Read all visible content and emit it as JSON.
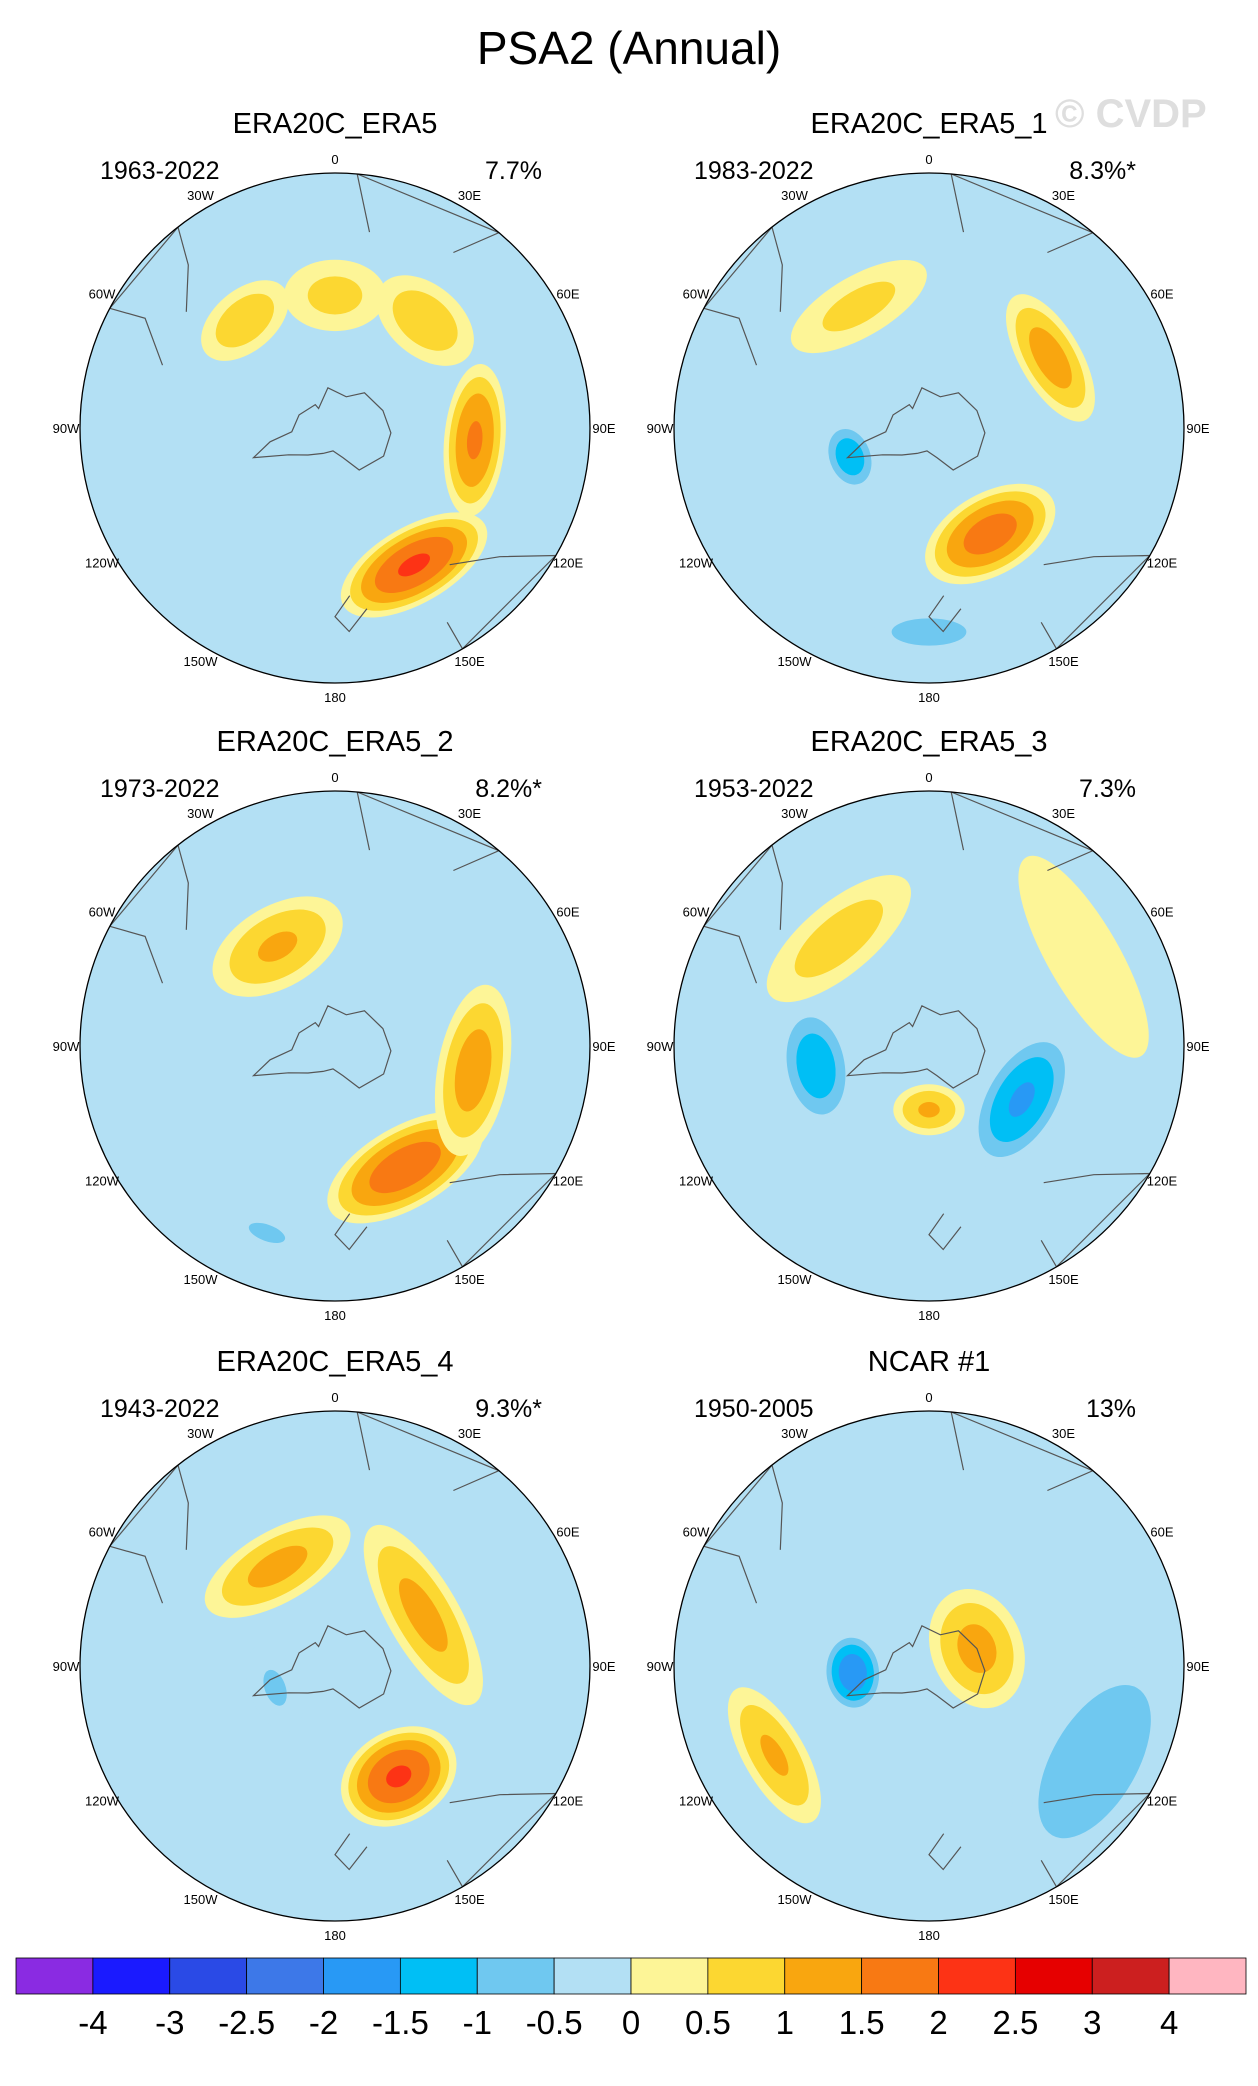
{
  "figure": {
    "title": "PSA2 (Annual)",
    "watermark": "© CVDP"
  },
  "chart_data": {
    "type": "heatmap",
    "projection": "south-polar-stereographic",
    "variable_units": "",
    "longitude_labels": [
      "0",
      "30E",
      "60E",
      "90E",
      "120E",
      "150E",
      "180",
      "150W",
      "120W",
      "90W",
      "60W",
      "30W"
    ],
    "panels": [
      {
        "name": "ERA20C_ERA5",
        "period": "1963-2022",
        "pct_variance": "7.7%",
        "anomalies": [
          {
            "lon": 150,
            "dist": 0.62,
            "a": 0.15,
            "b": 0.32,
            "rot": 0,
            "value": 2.1
          },
          {
            "lon": 95,
            "dist": 0.55,
            "a": 0.12,
            "b": 0.3,
            "rot": 0,
            "value": 1.6
          },
          {
            "lon": 40,
            "dist": 0.55,
            "a": 0.14,
            "b": 0.22,
            "rot": 0,
            "value": 0.9
          },
          {
            "lon": 0,
            "dist": 0.52,
            "a": 0.14,
            "b": 0.2,
            "rot": 0,
            "value": 0.7
          },
          {
            "lon": 320,
            "dist": 0.55,
            "a": 0.12,
            "b": 0.2,
            "rot": 0,
            "value": 0.9
          },
          {
            "lon": 210,
            "dist": 0.15,
            "a": 0.15,
            "b": 0.18,
            "rot": 0,
            "value": -0.4
          }
        ]
      },
      {
        "name": "ERA20C_ERA5_1",
        "period": "1983-2022",
        "pct_variance": "8.3%*",
        "anomalies": [
          {
            "lon": 150,
            "dist": 0.48,
            "a": 0.16,
            "b": 0.28,
            "rot": 0,
            "value": 1.8
          },
          {
            "lon": 60,
            "dist": 0.55,
            "a": 0.12,
            "b": 0.28,
            "rot": 0,
            "value": 1.3
          },
          {
            "lon": 330,
            "dist": 0.55,
            "a": 0.12,
            "b": 0.3,
            "rot": 0,
            "value": 0.7
          },
          {
            "lon": 250,
            "dist": 0.33,
            "a": 0.1,
            "b": 0.14,
            "rot": 0,
            "value": -1.4
          },
          {
            "lon": 180,
            "dist": 0.8,
            "a": 0.08,
            "b": 0.22,
            "rot": 0,
            "value": -0.9
          }
        ]
      },
      {
        "name": "ERA20C_ERA5_2",
        "period": "1973-2022",
        "pct_variance": "8.2%*",
        "anomalies": [
          {
            "lon": 150,
            "dist": 0.55,
            "a": 0.16,
            "b": 0.34,
            "rot": 0,
            "value": 1.9
          },
          {
            "lon": 100,
            "dist": 0.55,
            "a": 0.14,
            "b": 0.34,
            "rot": 0,
            "value": 1.3
          },
          {
            "lon": 330,
            "dist": 0.45,
            "a": 0.16,
            "b": 0.28,
            "rot": 0,
            "value": 1.1
          },
          {
            "lon": 215,
            "dist": 0.15,
            "a": 0.14,
            "b": 0.18,
            "rot": 0,
            "value": -0.4
          },
          {
            "lon": 200,
            "dist": 0.78,
            "a": 0.06,
            "b": 0.14,
            "rot": 0,
            "value": -0.7
          }
        ]
      },
      {
        "name": "ERA20C_ERA5_3",
        "period": "1953-2022",
        "pct_variance": "7.3%",
        "anomalies": [
          {
            "lon": 120,
            "dist": 0.42,
            "a": 0.16,
            "b": 0.3,
            "rot": 0,
            "value": -1.6
          },
          {
            "lon": 260,
            "dist": 0.45,
            "a": 0.14,
            "b": 0.24,
            "rot": 0,
            "value": -1.4
          },
          {
            "lon": 180,
            "dist": 0.25,
            "a": 0.1,
            "b": 0.14,
            "rot": 0,
            "value": 1.1
          },
          {
            "lon": 320,
            "dist": 0.55,
            "a": 0.14,
            "b": 0.35,
            "rot": 0,
            "value": 0.8
          },
          {
            "lon": 60,
            "dist": 0.7,
            "a": 0.14,
            "b": 0.45,
            "rot": 0,
            "value": 0.5
          }
        ]
      },
      {
        "name": "ERA20C_ERA5_4",
        "period": "1943-2022",
        "pct_variance": "9.3%*",
        "anomalies": [
          {
            "lon": 150,
            "dist": 0.5,
            "a": 0.18,
            "b": 0.24,
            "rot": 0,
            "value": 2.1
          },
          {
            "lon": 60,
            "dist": 0.4,
            "a": 0.14,
            "b": 0.4,
            "rot": 0,
            "value": 1.2
          },
          {
            "lon": 330,
            "dist": 0.45,
            "a": 0.14,
            "b": 0.32,
            "rot": 0,
            "value": 1.2
          },
          {
            "lon": 250,
            "dist": 0.25,
            "a": 0.1,
            "b": 0.18,
            "rot": 0,
            "value": -0.6
          }
        ]
      },
      {
        "name": "NCAR #1",
        "period": "1950-2005",
        "pct_variance": "13%",
        "anomalies": [
          {
            "lon": 265,
            "dist": 0.3,
            "a": 0.12,
            "b": 0.16,
            "rot": 0,
            "value": -1.9
          },
          {
            "lon": 70,
            "dist": 0.2,
            "a": 0.18,
            "b": 0.24,
            "rot": 0,
            "value": 1.2
          },
          {
            "lon": 240,
            "dist": 0.7,
            "a": 0.12,
            "b": 0.3,
            "rot": 0,
            "value": 1.1
          },
          {
            "lon": 120,
            "dist": 0.75,
            "a": 0.25,
            "b": 0.5,
            "rot": 0,
            "value": -0.9
          }
        ]
      }
    ],
    "colorbar": {
      "labels": [
        "-4",
        "-3",
        "-2.5",
        "-2",
        "-1.5",
        "-1",
        "-0.5",
        "0",
        "0.5",
        "1",
        "1.5",
        "2",
        "2.5",
        "3",
        "4"
      ],
      "colors": [
        "#8a2be2",
        "#1a1aff",
        "#2a4ae6",
        "#3d78e8",
        "#2899f5",
        "#00bff5",
        "#6fc8f0",
        "#b3e0f4",
        "#fdf597",
        "#fcd731",
        "#f9a60f",
        "#f87913",
        "#fd3315",
        "#e60000",
        "#cc1f1f",
        "#ffb6c1"
      ]
    }
  }
}
